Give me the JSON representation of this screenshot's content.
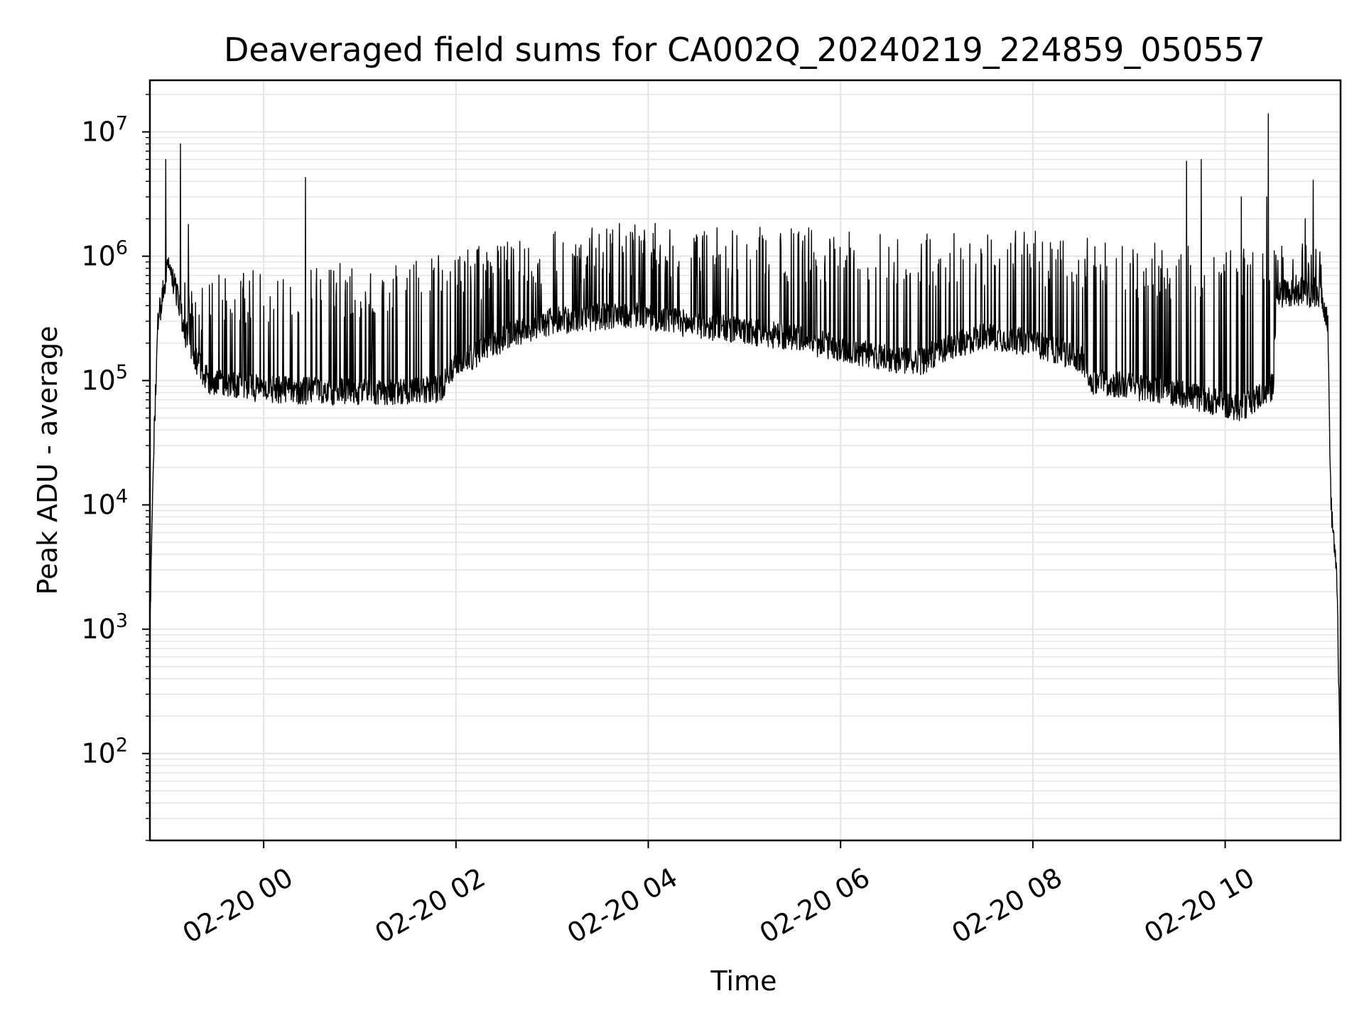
{
  "chart_data": {
    "type": "line",
    "title": "Deaveraged field sums for CA002Q_20240219_224859_050557",
    "xlabel": "Time",
    "ylabel": "Peak ADU - average",
    "yscale": "log",
    "ylim": [
      20,
      26000000
    ],
    "xlim": [
      "2024-02-19T22:49:00",
      "2024-02-20T11:12:00"
    ],
    "grid": true,
    "line_color": "#000000",
    "grid_color": "#e6e6e6",
    "x_ticks": [
      {
        "t": "2024-02-20T00:00:00",
        "label": "02-20 00"
      },
      {
        "t": "2024-02-20T02:00:00",
        "label": "02-20 02"
      },
      {
        "t": "2024-02-20T04:00:00",
        "label": "02-20 04"
      },
      {
        "t": "2024-02-20T06:00:00",
        "label": "02-20 06"
      },
      {
        "t": "2024-02-20T08:00:00",
        "label": "02-20 08"
      },
      {
        "t": "2024-02-20T10:00:00",
        "label": "02-20 10"
      }
    ],
    "y_ticks": [
      {
        "value": 100,
        "base": "10",
        "exp": "2"
      },
      {
        "value": 1000,
        "base": "10",
        "exp": "3"
      },
      {
        "value": 10000,
        "base": "10",
        "exp": "4"
      },
      {
        "value": 100000,
        "base": "10",
        "exp": "5"
      },
      {
        "value": 1000000,
        "base": "10",
        "exp": "6"
      },
      {
        "value": 10000000,
        "base": "10",
        "exp": "7"
      }
    ],
    "series": [
      {
        "baseline": [
          [
            "2024-02-19T22:49:00",
            1000
          ],
          [
            "2024-02-19T22:51:00",
            20000
          ],
          [
            "2024-02-19T22:54:00",
            300000
          ],
          [
            "2024-02-19T23:00:00",
            800000
          ],
          [
            "2024-02-19T23:06:00",
            500000
          ],
          [
            "2024-02-19T23:12:00",
            200000
          ],
          [
            "2024-02-19T23:25:00",
            100000
          ],
          [
            "2024-02-20T00:00:00",
            85000
          ],
          [
            "2024-02-20T01:00:00",
            80000
          ],
          [
            "2024-02-20T01:50:00",
            85000
          ],
          [
            "2024-02-20T02:00:00",
            130000
          ],
          [
            "2024-02-20T02:30:00",
            220000
          ],
          [
            "2024-02-20T03:00:00",
            300000
          ],
          [
            "2024-02-20T03:50:00",
            340000
          ],
          [
            "2024-02-20T04:30:00",
            280000
          ],
          [
            "2024-02-20T05:30:00",
            220000
          ],
          [
            "2024-02-20T06:30:00",
            150000
          ],
          [
            "2024-02-20T06:50:00",
            140000
          ],
          [
            "2024-02-20T07:00:00",
            170000
          ],
          [
            "2024-02-20T07:30:00",
            230000
          ],
          [
            "2024-02-20T08:00:00",
            200000
          ],
          [
            "2024-02-20T08:30:00",
            150000
          ],
          [
            "2024-02-20T08:35:00",
            100000
          ],
          [
            "2024-02-20T09:30:00",
            80000
          ],
          [
            "2024-02-20T10:10:00",
            60000
          ],
          [
            "2024-02-20T10:30:00",
            90000
          ],
          [
            "2024-02-20T10:32:00",
            500000
          ],
          [
            "2024-02-20T11:00:00",
            500000
          ],
          [
            "2024-02-20T11:04:00",
            300000
          ],
          [
            "2024-02-20T11:06:00",
            10000
          ],
          [
            "2024-02-20T11:08:00",
            5000
          ],
          [
            "2024-02-20T11:10:00",
            2000
          ],
          [
            "2024-02-20T11:12:00",
            40
          ]
        ],
        "spike_envelope": [
          [
            "2024-02-19T23:10:00",
            700000
          ],
          [
            "2024-02-20T00:30:00",
            850000
          ],
          [
            "2024-02-20T01:30:00",
            950000
          ],
          [
            "2024-02-20T02:10:00",
            1200000
          ],
          [
            "2024-02-20T03:00:00",
            1600000
          ],
          [
            "2024-02-20T03:45:00",
            1900000
          ],
          [
            "2024-02-20T05:00:00",
            1800000
          ],
          [
            "2024-02-20T06:30:00",
            1600000
          ],
          [
            "2024-02-20T08:00:00",
            1600000
          ],
          [
            "2024-02-20T09:00:00",
            1300000
          ],
          [
            "2024-02-20T10:30:00",
            1200000
          ],
          [
            "2024-02-20T11:00:00",
            1500000
          ]
        ],
        "tall_spikes": [
          [
            "2024-02-19T22:59:00",
            6000000
          ],
          [
            "2024-02-19T23:08:00",
            8000000
          ],
          [
            "2024-02-19T23:13:00",
            1800000
          ],
          [
            "2024-02-20T00:26:00",
            4300000
          ],
          [
            "2024-02-20T09:36:00",
            5800000
          ],
          [
            "2024-02-20T09:45:00",
            6000000
          ],
          [
            "2024-02-20T10:10:00",
            3000000
          ],
          [
            "2024-02-20T10:26:00",
            3000000
          ],
          [
            "2024-02-20T10:27:00",
            14000000
          ],
          [
            "2024-02-20T10:50:00",
            2000000
          ],
          [
            "2024-02-20T10:55:00",
            4100000
          ]
        ]
      }
    ]
  }
}
